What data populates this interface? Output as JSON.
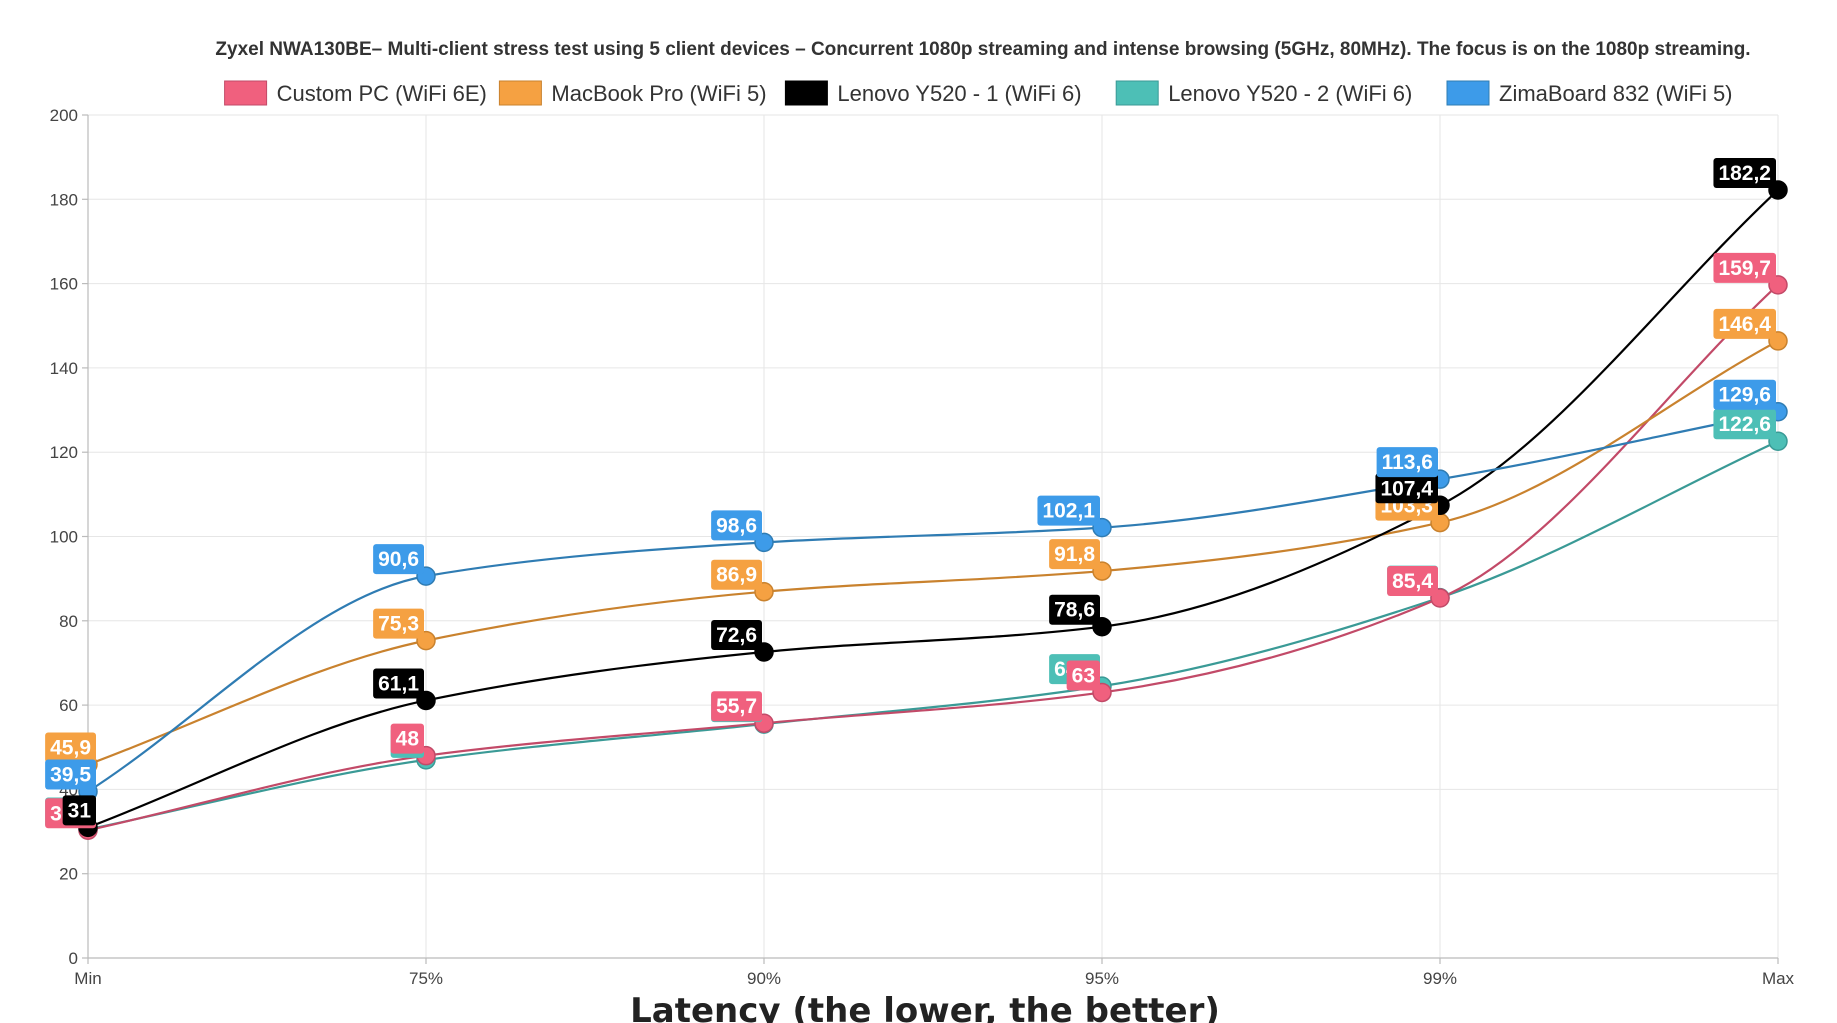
{
  "chart_data": {
    "type": "line",
    "title": "Zyxel NWA130BE– Multi-client stress test using 5 client devices – Concurrent 1080p streaming and intense browsing (5GHz, 80MHz). The focus is on the 1080p streaming.",
    "xlabel": "Latency (the lower, the better)",
    "ylabel": "",
    "categories": [
      "Min",
      "75%",
      "90%",
      "95%",
      "99%",
      "Max"
    ],
    "ylim": [
      0,
      200
    ],
    "yticks": [
      0,
      20,
      40,
      60,
      80,
      100,
      120,
      140,
      160,
      180,
      200
    ],
    "grid": true,
    "legend_position": "top",
    "series": [
      {
        "name": "Custom PC (WiFi 6E)",
        "color": "#f0607e",
        "line_color": "#c24a68",
        "values": [
          30.3,
          48,
          55.7,
          63,
          85.4,
          159.7
        ]
      },
      {
        "name": "MacBook Pro (WiFi 5)",
        "color": "#f5a142",
        "line_color": "#c9822e",
        "values": [
          45.9,
          75.3,
          86.9,
          91.8,
          103.3,
          146.4
        ]
      },
      {
        "name": "Lenovo Y520 - 1 (WiFi 6)",
        "color": "#000000",
        "line_color": "#000000",
        "values": [
          31,
          61.1,
          72.6,
          78.6,
          107.4,
          182.2
        ]
      },
      {
        "name": "Lenovo Y520 - 2 (WiFi 6)",
        "color": "#4dbfb6",
        "line_color": "#3a9a96",
        "values": [
          30.5,
          47,
          55.5,
          64.5,
          85.5,
          122.6
        ]
      },
      {
        "name": "ZimaBoard 832 (WiFi 5)",
        "color": "#3d9be9",
        "line_color": "#2f7cb3",
        "values": [
          39.5,
          90.6,
          98.6,
          102.1,
          113.6,
          129.6
        ]
      }
    ],
    "data_labels": [
      [
        "30,3",
        "48",
        "55,7",
        "63",
        "85,4",
        "159,7"
      ],
      [
        "45,9",
        "75,3",
        "86,9",
        "91,8",
        "103,3",
        "146,4"
      ],
      [
        "31",
        "61,1",
        "72,6",
        "78,6",
        "107,4",
        "182,2"
      ],
      [
        "30,5",
        "47",
        "55,5",
        "64,5",
        "85,5",
        "122,6"
      ],
      [
        "39,5",
        "90,6",
        "98,6",
        "102,1",
        "113,6",
        "129,6"
      ]
    ]
  }
}
